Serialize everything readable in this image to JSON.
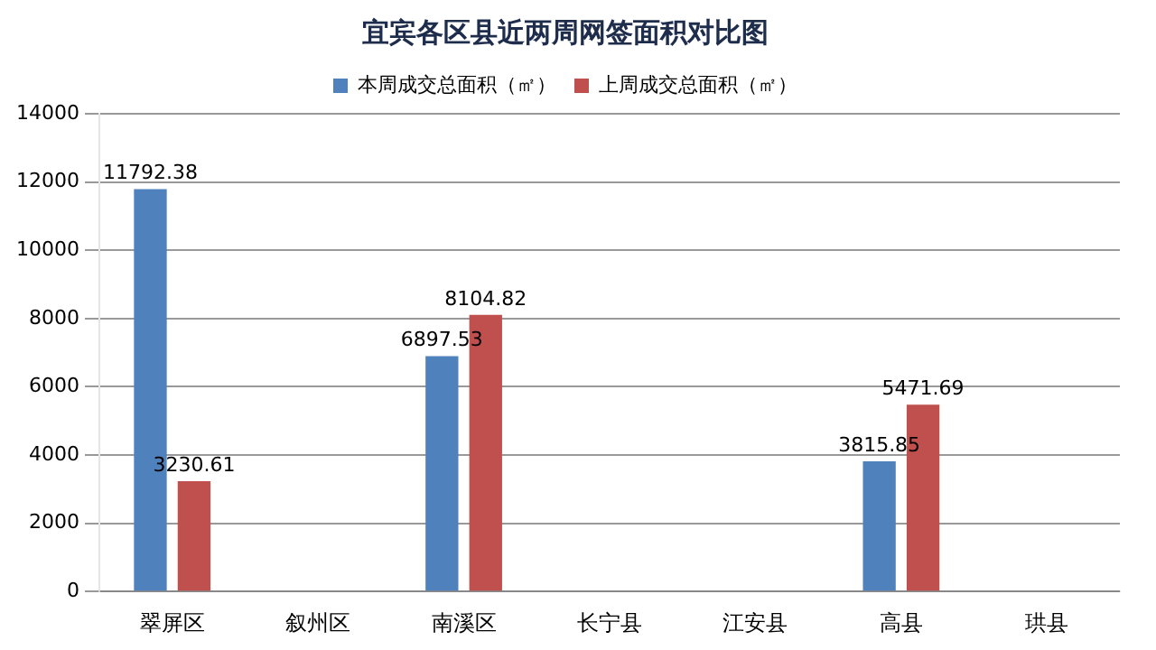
{
  "chart_data": {
    "type": "bar",
    "title": "宜宾各区县近两周网签面积对比图",
    "categories": [
      "翠屏区",
      "叙州区",
      "南溪区",
      "长宁县",
      "江安县",
      "高县",
      "珙县"
    ],
    "series": [
      {
        "name": "本周成交总面积（㎡）",
        "color": "#4f81bd",
        "values": [
          11792.38,
          null,
          6897.53,
          null,
          null,
          3815.85,
          null
        ]
      },
      {
        "name": "上周成交总面积（㎡）",
        "color": "#c0504d",
        "values": [
          3230.61,
          null,
          8104.82,
          null,
          null,
          5471.69,
          null
        ]
      }
    ],
    "ylim": [
      0,
      14000
    ],
    "yticks": [
      0,
      2000,
      4000,
      6000,
      8000,
      10000,
      12000,
      14000
    ],
    "grid": "y",
    "legend": "top",
    "data_labels": true
  }
}
